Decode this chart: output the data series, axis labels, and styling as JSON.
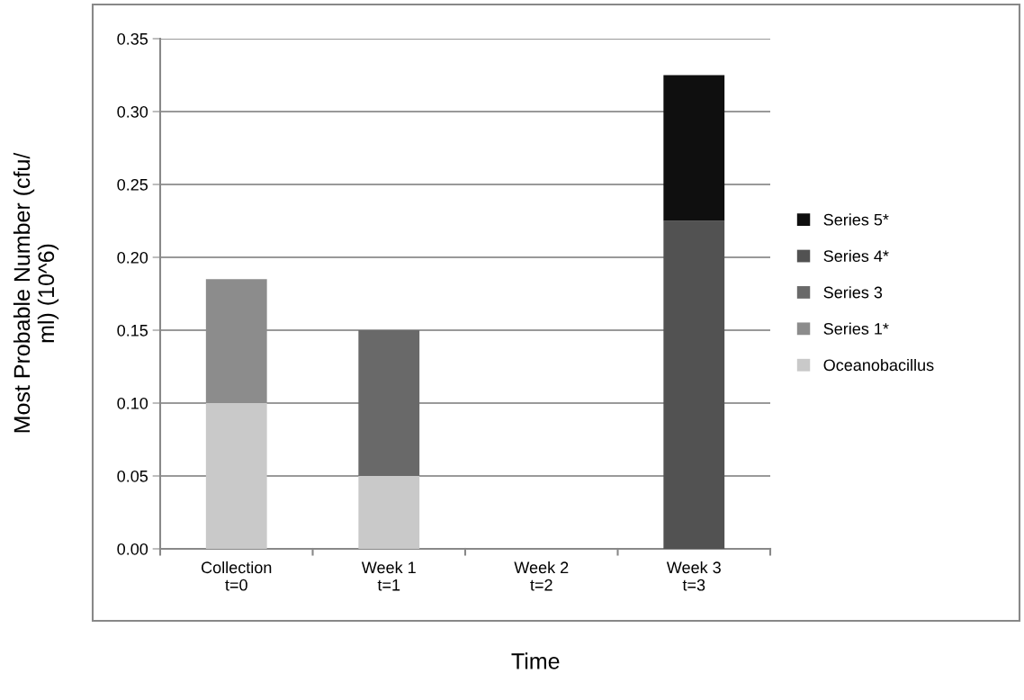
{
  "chart_data": {
    "type": "bar",
    "stacked": true,
    "xlabel": "Time",
    "ylabel": "Most Probable Number (cfu/\nml) (10^6)",
    "categories": [
      "Collection\nt=0",
      "Week 1\nt=1",
      "Week 2\nt=2",
      "Week 3\nt=3"
    ],
    "series": [
      {
        "name": "Oceanobacillus",
        "color": "#c9c9c9",
        "values": [
          0.1,
          0.05,
          null,
          null
        ]
      },
      {
        "name": "Series 1*",
        "color": "#8c8c8c",
        "values": [
          0.085,
          null,
          null,
          null
        ]
      },
      {
        "name": "Series 3",
        "color": "#696969",
        "values": [
          null,
          0.1,
          null,
          null
        ]
      },
      {
        "name": "Series 4*",
        "color": "#525252",
        "values": [
          null,
          null,
          null,
          0.225
        ]
      },
      {
        "name": "Series 5*",
        "color": "#0f0f0f",
        "values": [
          null,
          null,
          null,
          0.1
        ]
      }
    ],
    "ylim": [
      0,
      0.35
    ],
    "yticks": [
      {
        "value": 0,
        "label": "0.00"
      },
      {
        "value": 0.05,
        "label": "0.05"
      },
      {
        "value": 0.1,
        "label": "0.10"
      },
      {
        "value": 0.15,
        "label": "0.15"
      },
      {
        "value": 0.2,
        "label": "0.20"
      },
      {
        "value": 0.25,
        "label": "0.25"
      },
      {
        "value": 0.3,
        "label": "0.30"
      },
      {
        "value": 0.35,
        "label": "0.35"
      }
    ],
    "grid": "y",
    "legend": "right"
  }
}
